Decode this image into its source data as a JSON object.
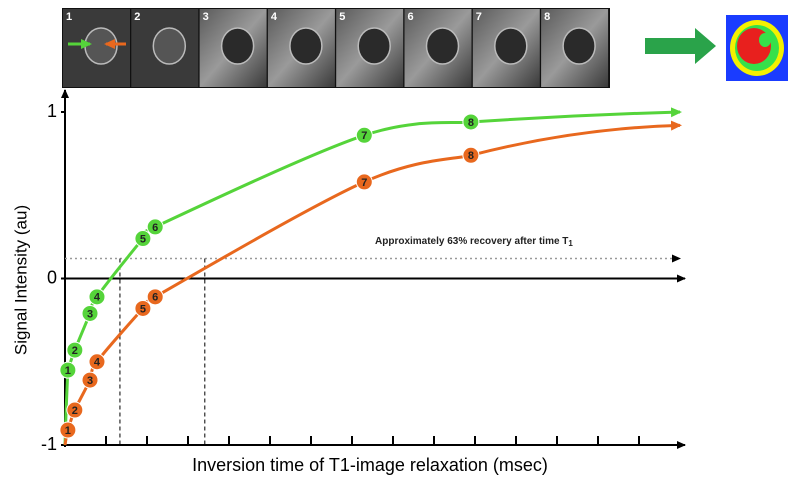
{
  "chart_data": {
    "type": "line",
    "image_strip_labels": [
      "1",
      "2",
      "3",
      "4",
      "5",
      "6",
      "7",
      "8"
    ],
    "y_label": "Signal Intensity (au)",
    "x_label": "Inversion time of T1-image relaxation (msec)",
    "annotation": "Approximately 63% recovery after time T",
    "annotation_subscript": "1",
    "xlim": [
      0,
      15
    ],
    "xticks": [
      1,
      2,
      3,
      4,
      5,
      6,
      7,
      8,
      9,
      10,
      11,
      12,
      13,
      14
    ],
    "ylim": [
      -1,
      1
    ],
    "yticks": [
      -1,
      0,
      1
    ],
    "x": [
      0.07,
      0.24,
      0.61,
      0.78,
      1.9,
      2.2,
      7.3,
      9.9
    ],
    "series": [
      {
        "color": "#55d43a",
        "point_labels": [
          "1",
          "2",
          "3",
          "4",
          "5",
          "6",
          "7",
          "8"
        ],
        "values": [
          -0.55,
          -0.43,
          -0.21,
          -0.11,
          0.24,
          0.31,
          0.86,
          0.94
        ]
      },
      {
        "color": "#e8681e",
        "point_labels": [
          "1",
          "2",
          "3",
          "4",
          "5",
          "6",
          "7",
          "8"
        ],
        "values": [
          -0.91,
          -0.79,
          -0.61,
          -0.5,
          -0.18,
          -0.11,
          0.58,
          0.74
        ]
      }
    ],
    "reference_lines": {
      "y": 0.12,
      "x": [
        1.34,
        3.41
      ]
    }
  }
}
